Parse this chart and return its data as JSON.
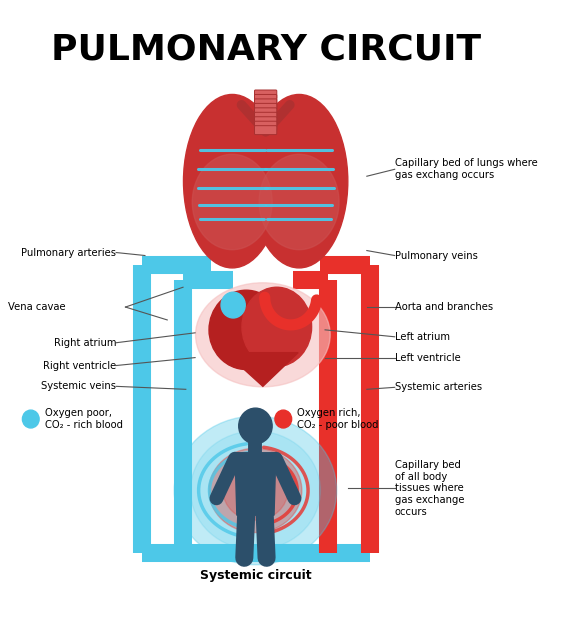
{
  "title": "PULMONARY CIRCUIT",
  "title_fontsize": 26,
  "title_fontweight": "bold",
  "bg_color": "#ffffff",
  "blue_color": "#4DC8E8",
  "red_color": "#E8302A",
  "tube_lw": 13,
  "tube_lw_inner": 10,
  "legend_blue_text": "Oxygen poor,\nCO₂ - rich blood",
  "legend_red_text": "Oxygen rich,\nCO₂ - poor blood",
  "systemic_circuit_text": "Systemic circuit",
  "body_color": "#2C4F6A",
  "label_fontsize": 7.2
}
